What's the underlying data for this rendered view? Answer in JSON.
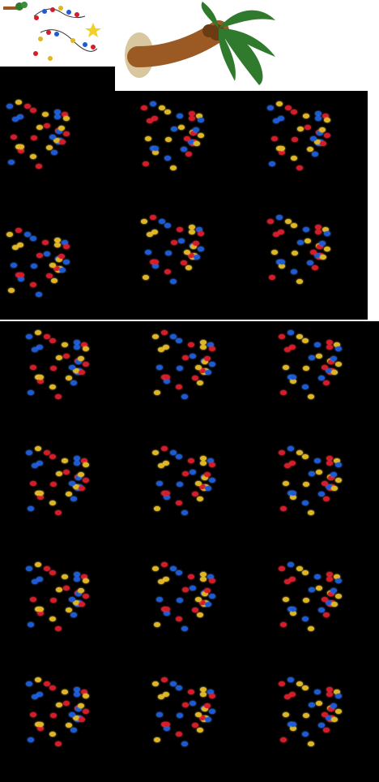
{
  "sheet": {
    "colors": {
      "background": "#000000",
      "white": "#ffffff",
      "bulb_red": "#d41c2a",
      "bulb_blue": "#1d5bd6",
      "bulb_yellow": "#e0b623",
      "palm_trunk": "#9b5a24",
      "palm_leaf": "#2f7a2c"
    },
    "icons": [
      "small-palm-icon",
      "string-lights-icon",
      "star-icon"
    ],
    "frame_groups": [
      {
        "name": "frames-top-left",
        "count": 2
      },
      {
        "name": "frames-top-right",
        "count": 4
      },
      {
        "name": "frames-bottom",
        "count": 12
      }
    ]
  }
}
